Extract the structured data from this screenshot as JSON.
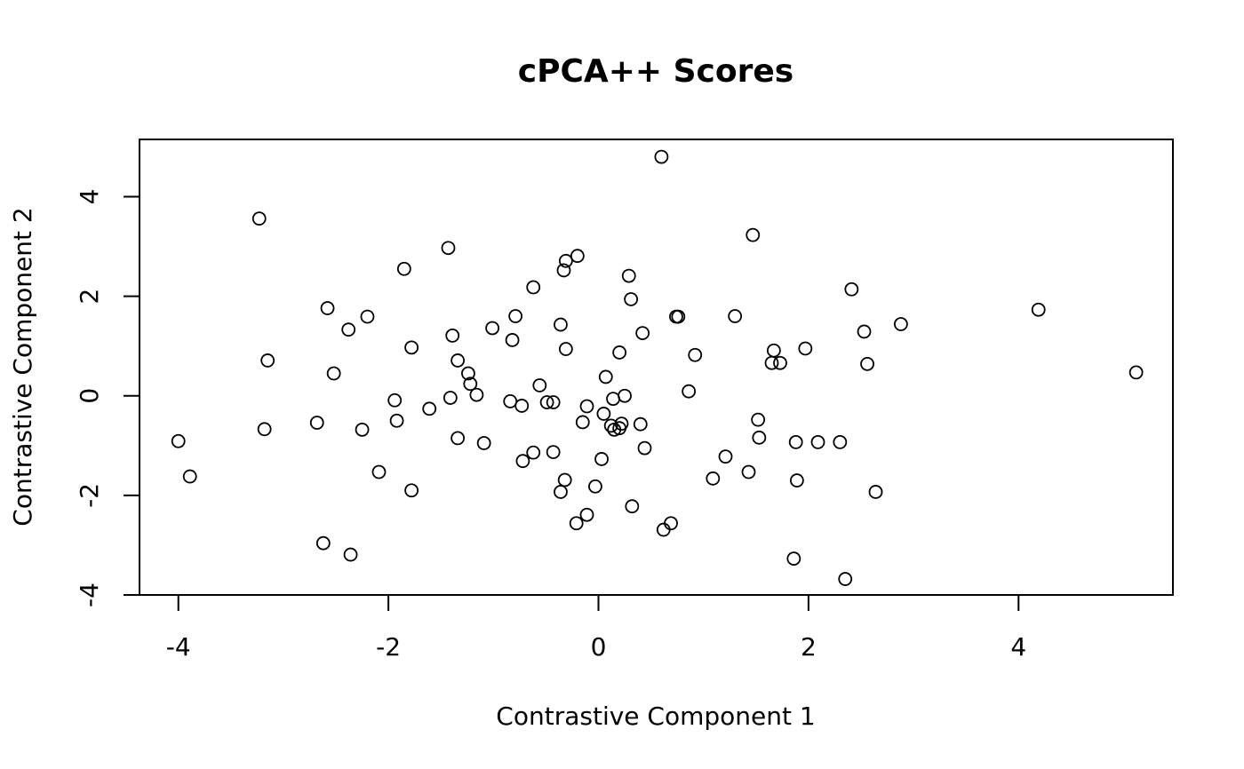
{
  "chart_data": {
    "type": "scatter",
    "title": "cPCA++ Scores",
    "xlabel": "Contrastive Component 1",
    "ylabel": "Contrastive Component 2",
    "xlim": [
      -4.37,
      5.47
    ],
    "ylim": [
      -4.0,
      5.15
    ],
    "xticks": [
      -4,
      -2,
      0,
      2,
      4
    ],
    "yticks": [
      -4,
      -2,
      0,
      2,
      4
    ],
    "xtick_labels": [
      "-4",
      "-2",
      "0",
      "2",
      "4"
    ],
    "ytick_labels": [
      "-4",
      "-2",
      "0",
      "2",
      "4"
    ],
    "grid": false,
    "marker": "open-circle",
    "marker_color": "#000000",
    "points": [
      {
        "x": 0.6,
        "y": 4.8
      },
      {
        "x": -3.23,
        "y": 3.56
      },
      {
        "x": 1.47,
        "y": 3.23
      },
      {
        "x": -1.43,
        "y": 2.97
      },
      {
        "x": -0.2,
        "y": 2.81
      },
      {
        "x": -0.31,
        "y": 2.71
      },
      {
        "x": -1.85,
        "y": 2.55
      },
      {
        "x": -0.33,
        "y": 2.52
      },
      {
        "x": 0.29,
        "y": 2.41
      },
      {
        "x": -0.62,
        "y": 2.18
      },
      {
        "x": 2.41,
        "y": 2.14
      },
      {
        "x": 0.31,
        "y": 1.94
      },
      {
        "x": -2.58,
        "y": 1.76
      },
      {
        "x": 4.19,
        "y": 1.73
      },
      {
        "x": -0.79,
        "y": 1.6
      },
      {
        "x": -2.2,
        "y": 1.59
      },
      {
        "x": 0.74,
        "y": 1.59
      },
      {
        "x": 0.76,
        "y": 1.59
      },
      {
        "x": 1.3,
        "y": 1.6
      },
      {
        "x": 2.88,
        "y": 1.44
      },
      {
        "x": -0.36,
        "y": 1.43
      },
      {
        "x": -1.01,
        "y": 1.36
      },
      {
        "x": -2.38,
        "y": 1.33
      },
      {
        "x": 2.53,
        "y": 1.29
      },
      {
        "x": 0.42,
        "y": 1.26
      },
      {
        "x": -1.39,
        "y": 1.21
      },
      {
        "x": -0.82,
        "y": 1.12
      },
      {
        "x": -1.78,
        "y": 0.97
      },
      {
        "x": 1.97,
        "y": 0.95
      },
      {
        "x": -0.31,
        "y": 0.94
      },
      {
        "x": 1.67,
        "y": 0.91
      },
      {
        "x": 0.2,
        "y": 0.87
      },
      {
        "x": 0.92,
        "y": 0.82
      },
      {
        "x": -3.15,
        "y": 0.71
      },
      {
        "x": -1.34,
        "y": 0.71
      },
      {
        "x": 1.65,
        "y": 0.66
      },
      {
        "x": 1.73,
        "y": 0.66
      },
      {
        "x": 2.56,
        "y": 0.64
      },
      {
        "x": 5.12,
        "y": 0.47
      },
      {
        "x": -2.52,
        "y": 0.45
      },
      {
        "x": -1.24,
        "y": 0.45
      },
      {
        "x": 0.07,
        "y": 0.38
      },
      {
        "x": -1.22,
        "y": 0.24
      },
      {
        "x": -0.56,
        "y": 0.21
      },
      {
        "x": 0.86,
        "y": 0.09
      },
      {
        "x": -1.16,
        "y": 0.02
      },
      {
        "x": 0.25,
        "y": 0.0
      },
      {
        "x": -1.41,
        "y": -0.04
      },
      {
        "x": 0.14,
        "y": -0.06
      },
      {
        "x": -1.94,
        "y": -0.09
      },
      {
        "x": -0.84,
        "y": -0.11
      },
      {
        "x": -0.49,
        "y": -0.13
      },
      {
        "x": -0.43,
        "y": -0.13
      },
      {
        "x": -0.73,
        "y": -0.2
      },
      {
        "x": -0.11,
        "y": -0.21
      },
      {
        "x": -1.61,
        "y": -0.26
      },
      {
        "x": 0.05,
        "y": -0.36
      },
      {
        "x": 1.52,
        "y": -0.48
      },
      {
        "x": -1.92,
        "y": -0.5
      },
      {
        "x": -0.15,
        "y": -0.53
      },
      {
        "x": -2.68,
        "y": -0.54
      },
      {
        "x": 0.22,
        "y": -0.56
      },
      {
        "x": 0.4,
        "y": -0.57
      },
      {
        "x": 0.12,
        "y": -0.6
      },
      {
        "x": 0.2,
        "y": -0.65
      },
      {
        "x": 0.15,
        "y": -0.68
      },
      {
        "x": -3.18,
        "y": -0.67
      },
      {
        "x": -2.25,
        "y": -0.68
      },
      {
        "x": 1.53,
        "y": -0.84
      },
      {
        "x": -1.34,
        "y": -0.85
      },
      {
        "x": -4.0,
        "y": -0.91
      },
      {
        "x": 1.88,
        "y": -0.93
      },
      {
        "x": 2.09,
        "y": -0.93
      },
      {
        "x": 2.3,
        "y": -0.93
      },
      {
        "x": -1.09,
        "y": -0.95
      },
      {
        "x": 0.44,
        "y": -1.05
      },
      {
        "x": -0.43,
        "y": -1.13
      },
      {
        "x": -0.62,
        "y": -1.14
      },
      {
        "x": 1.21,
        "y": -1.22
      },
      {
        "x": 0.03,
        "y": -1.27
      },
      {
        "x": -0.72,
        "y": -1.31
      },
      {
        "x": 1.43,
        "y": -1.53
      },
      {
        "x": -2.09,
        "y": -1.53
      },
      {
        "x": -3.89,
        "y": -1.62
      },
      {
        "x": 1.09,
        "y": -1.66
      },
      {
        "x": -0.32,
        "y": -1.69
      },
      {
        "x": 1.89,
        "y": -1.7
      },
      {
        "x": -0.03,
        "y": -1.82
      },
      {
        "x": -1.78,
        "y": -1.9
      },
      {
        "x": -0.36,
        "y": -1.93
      },
      {
        "x": 2.64,
        "y": -1.93
      },
      {
        "x": 0.32,
        "y": -2.22
      },
      {
        "x": -0.11,
        "y": -2.39
      },
      {
        "x": -0.21,
        "y": -2.56
      },
      {
        "x": 0.69,
        "y": -2.56
      },
      {
        "x": 0.62,
        "y": -2.69
      },
      {
        "x": -2.62,
        "y": -2.96
      },
      {
        "x": -2.36,
        "y": -3.19
      },
      {
        "x": 1.86,
        "y": -3.27
      },
      {
        "x": 2.35,
        "y": -3.68
      }
    ]
  }
}
